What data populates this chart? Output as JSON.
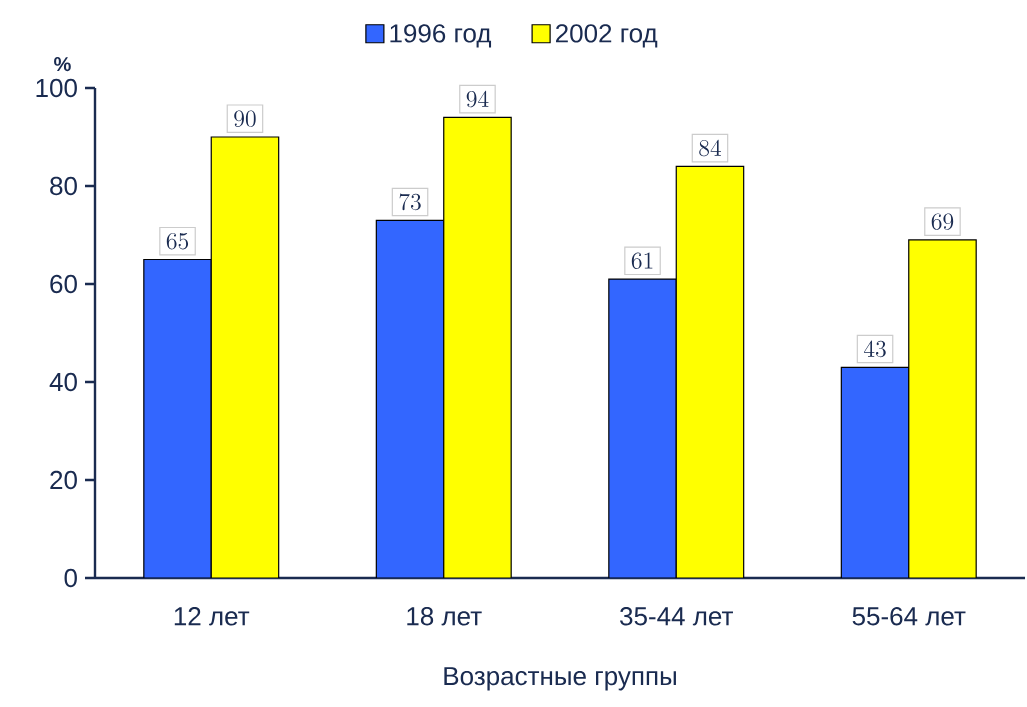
{
  "chart_data": {
    "type": "bar",
    "xlabel": "Возрастные группы",
    "ylabel": "%",
    "categories": [
      "12 лет",
      "18 лет",
      "35-44 лет",
      "55-64 лет"
    ],
    "series": [
      {
        "name": "1996 год",
        "color": "#3366ff",
        "values": [
          65,
          73,
          61,
          43
        ]
      },
      {
        "name": "2002 год",
        "color": "#ffff00",
        "values": [
          90,
          94,
          84,
          69
        ]
      }
    ],
    "ylim": [
      0,
      100
    ],
    "yticks": [
      0,
      20,
      40,
      60,
      80,
      100
    ],
    "data_labels": true,
    "legend": "top"
  }
}
